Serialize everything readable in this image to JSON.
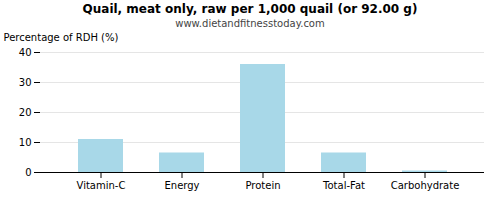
{
  "chart_data": {
    "type": "bar",
    "title": "Quail, meat only, raw per 1,000 quail (or 92.00 g)",
    "subtitle": "www.dietandfitnesstoday.com",
    "categories": [
      "Vitamin-C",
      "Energy",
      "Protein",
      "Total-Fat",
      "Carbohydrate"
    ],
    "values": [
      11.0,
      6.5,
      36.0,
      6.5,
      0.5
    ],
    "color": "#a8d8e8",
    "ylabel": "Percentage of RDH (%)",
    "ylim": [
      0,
      40
    ],
    "yticks": [
      0,
      10,
      20,
      30,
      40
    ],
    "grid": true
  }
}
